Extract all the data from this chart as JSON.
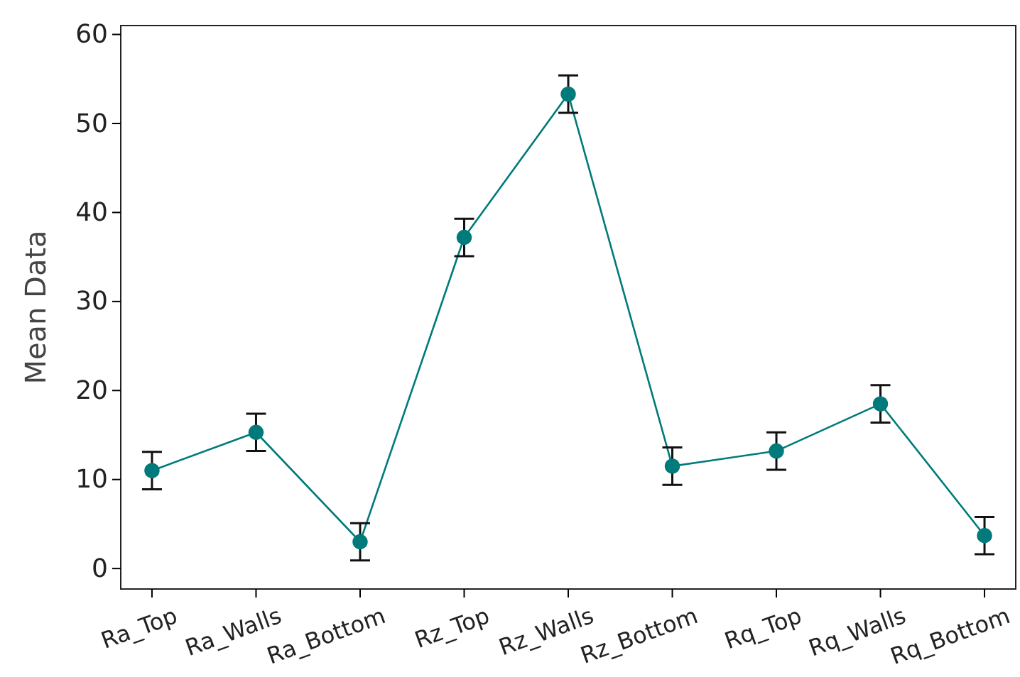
{
  "chart_data": {
    "type": "line",
    "ylabel": "Mean Data",
    "categories": [
      "Ra_Top",
      "Ra_Walls",
      "Ra_Bottom",
      "Rz_Top",
      "Rz_Walls",
      "Rz_Bottom",
      "Rq_Top",
      "Rq_Walls",
      "Rq_Bottom"
    ],
    "series": [
      {
        "color": "#007a7a",
        "values": [
          11.0,
          15.3,
          3.0,
          37.2,
          53.3,
          11.5,
          13.2,
          18.5,
          3.7
        ],
        "errors": [
          2.1,
          2.1,
          2.1,
          2.1,
          2.1,
          2.1,
          2.1,
          2.1,
          2.1
        ]
      }
    ],
    "ylim": [
      -2.3,
      61
    ],
    "yticks": [
      0,
      10,
      20,
      30,
      40,
      50,
      60
    ],
    "marker": "circle",
    "line_style": "solid",
    "grid": false
  }
}
